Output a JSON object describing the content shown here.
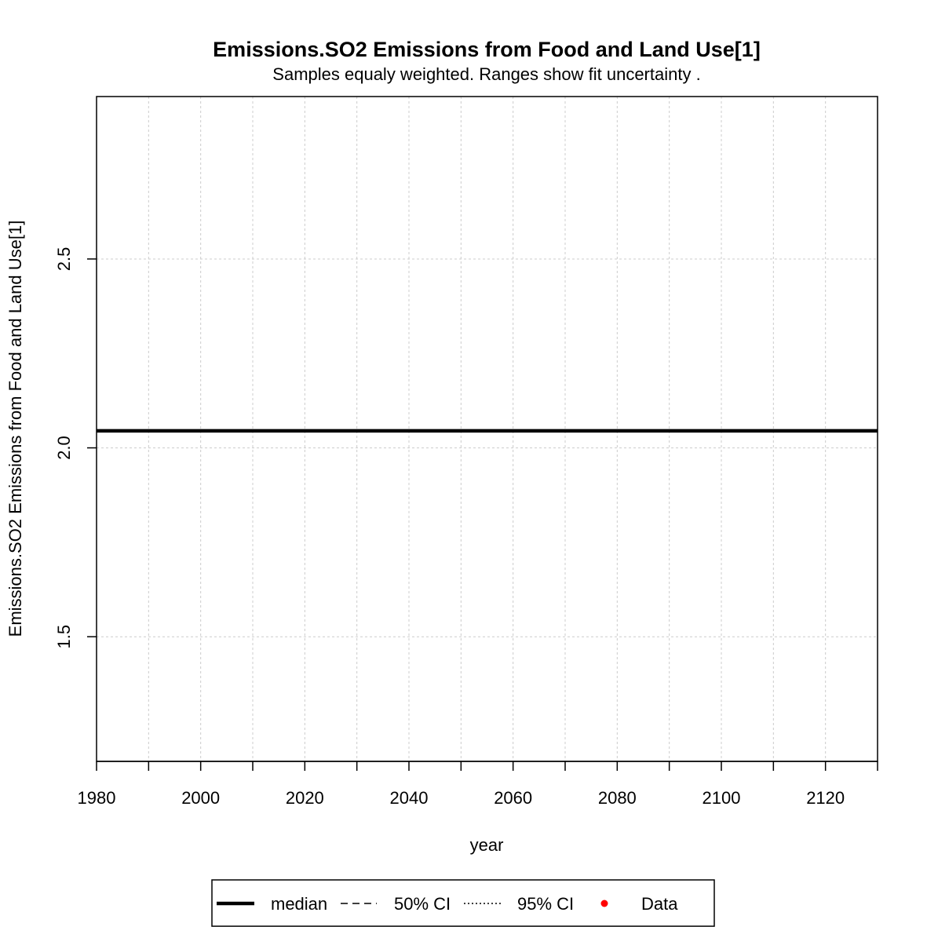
{
  "chart_data": {
    "type": "line",
    "title": "Emissions.SO2 Emissions from Food and Land Use[1]",
    "subtitle": "Samples equaly weighted. Ranges show  fit uncertainty .",
    "xlabel": "year",
    "ylabel": "Emissions.SO2 Emissions from Food and Land Use[1]",
    "xlim": [
      1980,
      2130
    ],
    "ylim": [
      1.17,
      2.93
    ],
    "x_ticks": [
      1980,
      2000,
      2020,
      2040,
      2060,
      2080,
      2100,
      2120
    ],
    "x_minor_ticks": [
      1990,
      2010,
      2030,
      2050,
      2070,
      2090,
      2110,
      2130
    ],
    "y_ticks": [
      1.5,
      2.0,
      2.5
    ],
    "grid": true,
    "series": [
      {
        "name": "median",
        "style": "solid",
        "color": "#000000",
        "x": [
          1980,
          2130
        ],
        "y": [
          2.045,
          2.045
        ]
      }
    ],
    "legend": {
      "position": "bottom",
      "entries": [
        {
          "label": "median",
          "style": "solid"
        },
        {
          "label": "50% CI",
          "style": "dashed"
        },
        {
          "label": "95% CI",
          "style": "dotted"
        },
        {
          "label": "Data",
          "style": "point",
          "color": "#ff0000"
        }
      ]
    }
  }
}
